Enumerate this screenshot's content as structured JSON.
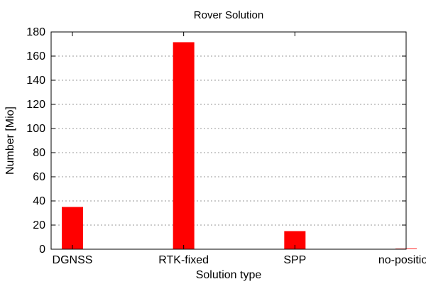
{
  "chart_data": {
    "type": "bar",
    "title": "Rover Solution",
    "xlabel": "Solution type",
    "ylabel": "Number [Mio]",
    "categories": [
      "DGNSS",
      "RTK-fixed",
      "SPP",
      "no-position"
    ],
    "values": [
      35,
      171.5,
      15,
      0.5
    ],
    "ylim": [
      0,
      180
    ],
    "yticks": [
      0,
      20,
      40,
      60,
      80,
      100,
      120,
      140,
      160,
      180
    ],
    "grid": "horizontal dotted",
    "legend": "none",
    "bar_color": "#ff0000"
  }
}
